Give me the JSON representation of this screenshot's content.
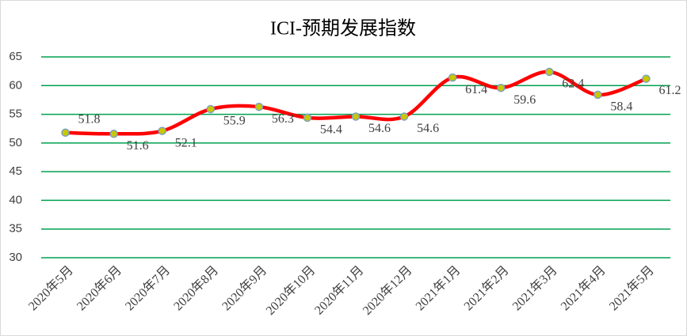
{
  "chart_data": {
    "type": "line",
    "title": "ICI-预期发展指数",
    "categories": [
      "2020年5月",
      "2020年6月",
      "2020年7月",
      "2020年8月",
      "2020年9月",
      "2020年10月",
      "2020年11月",
      "2020年12月",
      "2021年1月",
      "2021年2月",
      "2021年3月",
      "2021年4月",
      "2021年5月"
    ],
    "values": [
      51.8,
      51.6,
      52.1,
      55.9,
      56.3,
      54.4,
      54.6,
      54.6,
      61.4,
      59.6,
      62.4,
      58.4,
      61.2
    ],
    "color": "#ff0000",
    "marker_color": "#c8c800",
    "ylim": [
      30,
      65
    ],
    "yticks": [
      30,
      35,
      40,
      45,
      50,
      55,
      60,
      65
    ],
    "grid": true,
    "grid_color": "#00a050"
  }
}
